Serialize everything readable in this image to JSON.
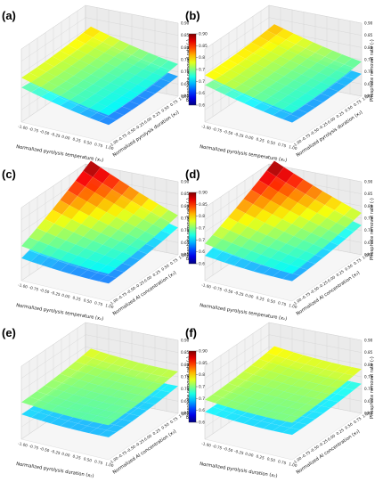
{
  "chart_data": [
    {
      "type": "surface3d",
      "panel_label": "(a)",
      "xlabel": "Normalized pyrolysis temperature (x₁)",
      "ylabel": "Normalized pyrolysis duration (x₂)",
      "zlabel": "Phosphate removal rate (-)",
      "x_ticks": [
        "-1.00",
        "-0.75",
        "-0.50",
        "-0.25",
        "0.00",
        "0.25",
        "0.50",
        "0.75",
        "1.00"
      ],
      "y_ticks": [
        "-1.00",
        "-0.75",
        "-0.50",
        "-0.25",
        "0.00",
        "0.25",
        "0.50",
        "0.75",
        "1.00"
      ],
      "z_ticks": [
        "0.60",
        "0.65",
        "0.70",
        "0.75",
        "0.80",
        "0.85",
        "0.90"
      ],
      "zlim": [
        0.6,
        0.9
      ],
      "upper_surface_corners": {
        "x_-1_y_-1": 0.77,
        "x_1_y_-1": 0.7,
        "x_-1_y_1": 0.79,
        "x_1_y_1": 0.72
      },
      "lower_surface_corners": {
        "x_-1_y_-1": 0.73,
        "x_1_y_-1": 0.66,
        "x_-1_y_1": 0.73,
        "x_1_y_1": 0.67
      },
      "colorbar": {
        "ticks": [
          "0.60",
          "0.65",
          "0.70",
          "0.75",
          "0.80",
          "0.85",
          "0.90"
        ],
        "range": [
          0.6,
          0.9
        ],
        "colormap": "jet"
      }
    },
    {
      "type": "surface3d",
      "panel_label": "(b)",
      "xlabel": "Normalized pyrolysis temperature (x₁)",
      "ylabel": "Normalized pyrolysis duration (x₂)",
      "zlabel": "Phosphate removal rate (-)",
      "x_ticks": [
        "-1.00",
        "-0.75",
        "-0.50",
        "-0.25",
        "0.00",
        "0.25",
        "0.50",
        "0.75",
        "1.00"
      ],
      "y_ticks": [
        "-1.00",
        "-0.75",
        "-0.50",
        "-0.25",
        "0.00",
        "0.25",
        "0.50",
        "0.75",
        "1.00"
      ],
      "z_ticks": [
        "0.60",
        "0.65",
        "0.70",
        "0.75",
        "0.80",
        "0.85",
        "0.90"
      ],
      "zlim": [
        0.6,
        0.9
      ],
      "upper_surface_corners": {
        "x_-1_y_-1": 0.78,
        "x_1_y_-1": 0.71,
        "x_-1_y_1": 0.8,
        "x_1_y_1": 0.73
      },
      "lower_surface_corners": {
        "x_-1_y_-1": 0.74,
        "x_1_y_-1": 0.67,
        "x_-1_y_1": 0.73,
        "x_1_y_1": 0.68
      }
    },
    {
      "type": "surface3d",
      "panel_label": "(c)",
      "xlabel": "Normalized pyrolysis temperature (x₁)",
      "ylabel": "Normalized Al concentration (x₃)",
      "zlabel": "Phosphate removal rate (-)",
      "x_ticks": [
        "-1.00",
        "-0.75",
        "-0.50",
        "-0.25",
        "0.00",
        "0.25",
        "0.50",
        "0.75",
        "1.00"
      ],
      "y_ticks": [
        "-1.00",
        "-0.75",
        "-0.50",
        "-0.25",
        "0.00",
        "0.25",
        "0.50",
        "0.75",
        "1.00"
      ],
      "z_ticks": [
        "0.60",
        "0.65",
        "0.70",
        "0.75",
        "0.80",
        "0.85",
        "0.90"
      ],
      "zlim": [
        0.6,
        0.9
      ],
      "upper_surface_corners": {
        "x_-1_y_-1": 0.73,
        "x_1_y_-1": 0.7,
        "x_-1_y_1": 0.89,
        "x_1_y_1": 0.75
      },
      "lower_surface_corners": {
        "x_-1_y_-1": 0.68,
        "x_1_y_-1": 0.66,
        "x_-1_y_1": 0.8,
        "x_1_y_1": 0.7
      },
      "colorbar": {
        "ticks": [
          "0.60",
          "0.65",
          "0.70",
          "0.75",
          "0.80",
          "0.85",
          "0.90"
        ],
        "range": [
          0.6,
          0.9
        ],
        "colormap": "jet"
      }
    },
    {
      "type": "surface3d",
      "panel_label": "(d)",
      "xlabel": "Normalized pyrolysis temperature (x₁)",
      "ylabel": "Normalized Al concentration (x₃)",
      "zlabel": "Phosphate removal rate (-)",
      "x_ticks": [
        "-1.00",
        "-0.75",
        "-0.50",
        "-0.25",
        "0.00",
        "0.25",
        "0.50",
        "0.75",
        "1.00"
      ],
      "y_ticks": [
        "-1.00",
        "-0.75",
        "-0.50",
        "-0.25",
        "0.00",
        "0.25",
        "0.50",
        "0.75",
        "1.00"
      ],
      "z_ticks": [
        "0.60",
        "0.65",
        "0.70",
        "0.75",
        "0.80",
        "0.85",
        "0.90"
      ],
      "zlim": [
        0.6,
        0.9
      ],
      "upper_surface_corners": {
        "x_-1_y_-1": 0.74,
        "x_1_y_-1": 0.7,
        "x_-1_y_1": 0.89,
        "x_1_y_1": 0.76
      },
      "lower_surface_corners": {
        "x_-1_y_-1": 0.69,
        "x_1_y_-1": 0.67,
        "x_-1_y_1": 0.81,
        "x_1_y_1": 0.71
      }
    },
    {
      "type": "surface3d",
      "panel_label": "(e)",
      "xlabel": "Normalized pyrolysis duration (x₂)",
      "ylabel": "Normalized Al concentration (x₃)",
      "zlabel": "Phosphate removal rate (-)",
      "x_ticks": [
        "-1.00",
        "-0.75",
        "-0.50",
        "-0.25",
        "0.00",
        "0.25",
        "0.50",
        "0.75",
        "1.00"
      ],
      "y_ticks": [
        "-1.00",
        "-0.75",
        "-0.50",
        "-0.25",
        "0.00",
        "0.25",
        "0.50",
        "0.75",
        "1.00"
      ],
      "z_ticks": [
        "0.60",
        "0.65",
        "0.70",
        "0.75",
        "0.80",
        "0.85",
        "0.90"
      ],
      "zlim": [
        0.6,
        0.9
      ],
      "upper_surface_corners": {
        "x_-1_y_-1": 0.74,
        "x_1_y_-1": 0.73,
        "x_-1_y_1": 0.77,
        "x_1_y_1": 0.76
      },
      "lower_surface_corners": {
        "x_-1_y_-1": 0.69,
        "x_1_y_-1": 0.68,
        "x_-1_y_1": 0.71,
        "x_1_y_1": 0.7
      },
      "colorbar": {
        "ticks": [
          "0.60",
          "0.65",
          "0.70",
          "0.75",
          "0.80",
          "0.85",
          "0.90"
        ],
        "range": [
          0.6,
          0.9
        ],
        "colormap": "jet"
      }
    },
    {
      "type": "surface3d",
      "panel_label": "(f)",
      "xlabel": "Normalized pyrolysis duration (x₂)",
      "ylabel": "Normalized Al concentration (x₃)",
      "zlabel": "Phosphate removal rate (-)",
      "x_ticks": [
        "-1.00",
        "-0.75",
        "-0.50",
        "-0.25",
        "0.00",
        "0.25",
        "0.50",
        "0.75",
        "1.00"
      ],
      "y_ticks": [
        "-1.00",
        "-0.75",
        "-0.50",
        "-0.25",
        "0.00",
        "0.25",
        "0.50",
        "0.75",
        "1.00"
      ],
      "z_ticks": [
        "0.60",
        "0.65",
        "0.70",
        "0.75",
        "0.80",
        "0.85",
        "0.90"
      ],
      "zlim": [
        0.6,
        0.9
      ],
      "upper_surface_corners": {
        "x_-1_y_-1": 0.75,
        "x_1_y_-1": 0.74,
        "x_-1_y_1": 0.78,
        "x_1_y_1": 0.77
      },
      "lower_surface_corners": {
        "x_-1_y_-1": 0.7,
        "x_1_y_-1": 0.69,
        "x_-1_y_1": 0.72,
        "x_1_y_1": 0.71
      }
    }
  ]
}
